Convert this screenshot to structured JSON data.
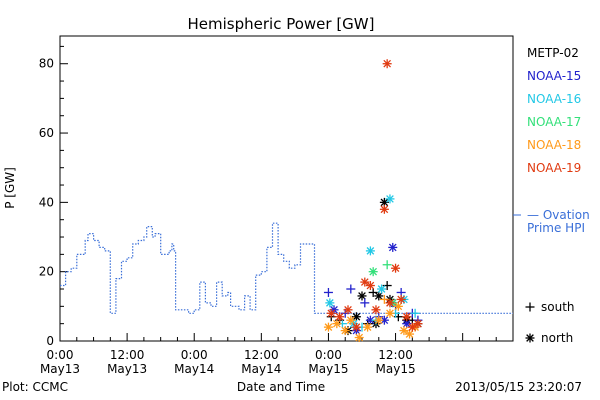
{
  "colors": {
    "METP-02": "#000000",
    "NOAA-15": "#2222cc",
    "NOAA-16": "#22c8e6",
    "NOAA-17": "#33e07a",
    "NOAA-18": "#ff9a1a",
    "NOAA-19": "#e03a10",
    "ovation": "#3a6fd8"
  },
  "chart_data": {
    "type": "scatter",
    "title": "Hemispheric Power [GW]",
    "xlabel": "Date and Time",
    "ylabel": "P [GW]",
    "xlim": [
      "2013-05-13 00:00",
      "2013-05-16 09:00"
    ],
    "ylim": [
      0,
      88
    ],
    "x_ticks": [
      {
        "time": "2013-05-13 00:00",
        "label": [
          "0:00",
          "May13"
        ]
      },
      {
        "time": "2013-05-13 12:00",
        "label": [
          "12:00",
          "May13"
        ]
      },
      {
        "time": "2013-05-14 00:00",
        "label": [
          "0:00",
          "May14"
        ]
      },
      {
        "time": "2013-05-14 12:00",
        "label": [
          "12:00",
          "May14"
        ]
      },
      {
        "time": "2013-05-15 00:00",
        "label": [
          "0:00",
          "May15"
        ]
      },
      {
        "time": "2013-05-15 12:00",
        "label": [
          "12:00",
          "May15"
        ]
      }
    ],
    "y_ticks": [
      0,
      20,
      40,
      60,
      80
    ],
    "legend": {
      "satellites": [
        "METP-02",
        "NOAA-15",
        "NOAA-16",
        "NOAA-17",
        "NOAA-18",
        "NOAA-19"
      ],
      "ovation_label": [
        "— Ovation",
        "Prime HPI"
      ],
      "hemisphere_keys": [
        {
          "symbol": "+",
          "label": "south"
        },
        {
          "symbol": "*",
          "label": "north"
        }
      ]
    },
    "footer_left": "Plot: CCMC",
    "footer_right": "2013/05/15 23:20:07",
    "ovation_series": {
      "name": "Ovation Prime HPI",
      "points": [
        [
          "2013-05-13 00:00",
          16
        ],
        [
          "2013-05-13 01:00",
          20
        ],
        [
          "2013-05-13 02:00",
          21
        ],
        [
          "2013-05-13 03:00",
          25
        ],
        [
          "2013-05-13 04:30",
          29
        ],
        [
          "2013-05-13 05:00",
          31
        ],
        [
          "2013-05-13 06:00",
          29
        ],
        [
          "2013-05-13 07:00",
          27
        ],
        [
          "2013-05-13 08:00",
          26
        ],
        [
          "2013-05-13 09:00",
          8
        ],
        [
          "2013-05-13 10:00",
          18
        ],
        [
          "2013-05-13 11:00",
          23
        ],
        [
          "2013-05-13 12:00",
          24
        ],
        [
          "2013-05-13 13:00",
          28
        ],
        [
          "2013-05-13 14:00",
          29
        ],
        [
          "2013-05-13 15:00",
          30
        ],
        [
          "2013-05-13 15:30",
          33
        ],
        [
          "2013-05-13 16:30",
          30
        ],
        [
          "2013-05-13 17:00",
          31
        ],
        [
          "2013-05-13 18:00",
          25
        ],
        [
          "2013-05-13 19:30",
          26
        ],
        [
          "2013-05-13 20:00",
          28
        ],
        [
          "2013-05-13 20:20",
          26
        ],
        [
          "2013-05-13 20:40",
          9
        ],
        [
          "2013-05-13 22:00",
          9
        ],
        [
          "2013-05-13 23:00",
          8
        ],
        [
          "2013-05-14 00:00",
          9
        ],
        [
          "2013-05-14 01:00",
          17
        ],
        [
          "2013-05-14 02:00",
          11
        ],
        [
          "2013-05-14 03:00",
          10
        ],
        [
          "2013-05-14 04:00",
          17
        ],
        [
          "2013-05-14 05:00",
          13
        ],
        [
          "2013-05-14 06:00",
          14
        ],
        [
          "2013-05-14 06:30",
          10
        ],
        [
          "2013-05-14 08:00",
          9
        ],
        [
          "2013-05-14 09:00",
          13
        ],
        [
          "2013-05-14 10:00",
          9
        ],
        [
          "2013-05-14 11:00",
          19
        ],
        [
          "2013-05-14 12:00",
          20
        ],
        [
          "2013-05-14 13:00",
          27
        ],
        [
          "2013-05-14 14:00",
          34
        ],
        [
          "2013-05-14 15:00",
          25
        ],
        [
          "2013-05-14 16:00",
          23
        ],
        [
          "2013-05-14 17:00",
          21
        ],
        [
          "2013-05-14 18:00",
          22
        ],
        [
          "2013-05-14 19:00",
          28
        ],
        [
          "2013-05-14 20:30",
          28
        ],
        [
          "2013-05-14 21:30",
          8
        ],
        [
          "2013-05-16 09:00",
          8
        ]
      ]
    },
    "series": [
      {
        "name": "METP-02",
        "points": [
          [
            "2013-05-15 00:30",
            7,
            "+"
          ],
          [
            "2013-05-15 02:00",
            6,
            "+"
          ],
          [
            "2013-05-15 03:30",
            3,
            "*"
          ],
          [
            "2013-05-15 05:00",
            7,
            "*"
          ],
          [
            "2013-05-15 06:00",
            13,
            "*"
          ],
          [
            "2013-05-15 07:00",
            5,
            "+"
          ],
          [
            "2013-05-15 08:00",
            14,
            "+"
          ],
          [
            "2013-05-15 08:30",
            5,
            "*"
          ],
          [
            "2013-05-15 09:00",
            13,
            "*"
          ],
          [
            "2013-05-15 10:00",
            40,
            "*"
          ],
          [
            "2013-05-15 10:30",
            16,
            "+"
          ],
          [
            "2013-05-15 11:00",
            12,
            "*"
          ],
          [
            "2013-05-15 12:30",
            7,
            "+"
          ],
          [
            "2013-05-15 14:00",
            6,
            "*"
          ],
          [
            "2013-05-15 15:00",
            6,
            "+"
          ],
          [
            "2013-05-15 16:00",
            5,
            "*"
          ]
        ]
      },
      {
        "name": "NOAA-15",
        "points": [
          [
            "2013-05-15 00:00",
            14,
            "+"
          ],
          [
            "2013-05-15 01:00",
            9,
            "*"
          ],
          [
            "2013-05-15 03:00",
            8,
            "+"
          ],
          [
            "2013-05-15 04:00",
            15,
            "+"
          ],
          [
            "2013-05-15 05:00",
            3,
            "*"
          ],
          [
            "2013-05-15 06:30",
            11,
            "+"
          ],
          [
            "2013-05-15 07:30",
            6,
            "*"
          ],
          [
            "2013-05-15 09:00",
            7,
            "+"
          ],
          [
            "2013-05-15 10:00",
            6,
            "*"
          ],
          [
            "2013-05-15 11:30",
            27,
            "*"
          ],
          [
            "2013-05-15 12:00",
            10,
            "+"
          ],
          [
            "2013-05-15 13:00",
            14,
            "+"
          ],
          [
            "2013-05-15 14:00",
            5,
            "*"
          ],
          [
            "2013-05-15 15:00",
            8,
            "+"
          ],
          [
            "2013-05-15 16:00",
            6,
            "+"
          ]
        ]
      },
      {
        "name": "NOAA-16",
        "points": [
          [
            "2013-05-15 00:15",
            11,
            "*"
          ],
          [
            "2013-05-15 02:30",
            5,
            "+"
          ],
          [
            "2013-05-15 04:30",
            5,
            "*"
          ],
          [
            "2013-05-15 06:00",
            4,
            "+"
          ],
          [
            "2013-05-15 07:30",
            26,
            "*"
          ],
          [
            "2013-05-15 08:30",
            6,
            "+"
          ],
          [
            "2013-05-15 09:30",
            15,
            "*"
          ],
          [
            "2013-05-15 11:00",
            41,
            "*"
          ],
          [
            "2013-05-15 12:00",
            8,
            "+"
          ],
          [
            "2013-05-15 13:30",
            12,
            "*"
          ],
          [
            "2013-05-15 15:30",
            8,
            "+"
          ]
        ]
      },
      {
        "name": "NOAA-17",
        "points": [
          [
            "2013-05-15 08:00",
            20,
            "*"
          ],
          [
            "2013-05-15 10:30",
            22,
            "+"
          ],
          [
            "2013-05-15 11:30",
            11,
            "*"
          ]
        ]
      },
      {
        "name": "NOAA-18",
        "points": [
          [
            "2013-05-15 00:00",
            4,
            "*"
          ],
          [
            "2013-05-15 01:30",
            5,
            "*"
          ],
          [
            "2013-05-15 03:00",
            3,
            "*"
          ],
          [
            "2013-05-15 04:00",
            6,
            "*"
          ],
          [
            "2013-05-15 05:30",
            1,
            "*"
          ],
          [
            "2013-05-15 07:00",
            4,
            "*"
          ],
          [
            "2013-05-15 09:00",
            6,
            "*"
          ],
          [
            "2013-05-15 10:00",
            12,
            "+"
          ],
          [
            "2013-05-15 11:00",
            8,
            "*"
          ],
          [
            "2013-05-15 12:30",
            10,
            "*"
          ],
          [
            "2013-05-15 13:30",
            3,
            "*"
          ],
          [
            "2013-05-15 14:30",
            2,
            "*"
          ],
          [
            "2013-05-15 15:30",
            4,
            "*"
          ]
        ]
      },
      {
        "name": "NOAA-19",
        "points": [
          [
            "2013-05-15 00:30",
            8,
            "*"
          ],
          [
            "2013-05-15 02:00",
            7,
            "*"
          ],
          [
            "2013-05-15 03:30",
            9,
            "*"
          ],
          [
            "2013-05-15 05:00",
            4,
            "*"
          ],
          [
            "2013-05-15 06:30",
            17,
            "*"
          ],
          [
            "2013-05-15 07:30",
            16,
            "*"
          ],
          [
            "2013-05-15 08:30",
            9,
            "*"
          ],
          [
            "2013-05-15 10:00",
            38,
            "*"
          ],
          [
            "2013-05-15 10:30",
            80,
            "*"
          ],
          [
            "2013-05-15 11:00",
            11,
            "*"
          ],
          [
            "2013-05-15 12:00",
            21,
            "*"
          ],
          [
            "2013-05-15 13:00",
            12,
            "*"
          ],
          [
            "2013-05-15 14:00",
            7,
            "*"
          ],
          [
            "2013-05-15 15:00",
            4,
            "*"
          ],
          [
            "2013-05-15 16:00",
            5,
            "*"
          ]
        ]
      }
    ]
  }
}
